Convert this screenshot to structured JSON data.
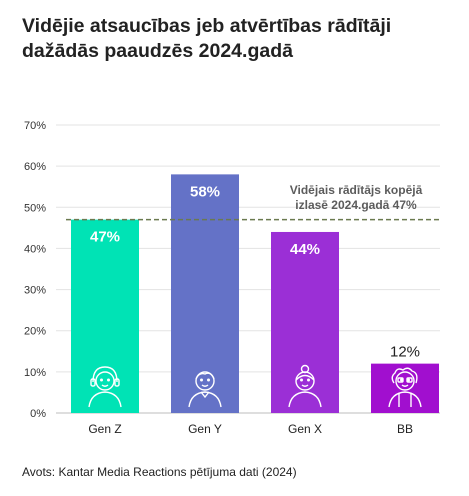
{
  "title_lines": [
    "Vidējie atsaucības jeb atvērtības rādītāji",
    "dažādās paaudzēs 2024.gadā"
  ],
  "source": "Avots: Kantar Media Reactions pētījuma dati (2024)",
  "chart_data": {
    "type": "bar",
    "categories": [
      "Gen Z",
      "Gen Y",
      "Gen X",
      "BB"
    ],
    "values": [
      47,
      58,
      44,
      12
    ],
    "value_labels": [
      "47%",
      "58%",
      "44%",
      "12%"
    ],
    "bar_colors": [
      "#00e3b5",
      "#6472c7",
      "#9b2fd6",
      "#a10fcf"
    ],
    "bar_icons": [
      "headset-person-icon",
      "person-icon",
      "woman-icon",
      "elder-person-icon"
    ],
    "ylim": [
      0,
      70
    ],
    "yticks": [
      0,
      10,
      20,
      30,
      40,
      50,
      60,
      70
    ],
    "ytick_labels": [
      "0%",
      "10%",
      "20%",
      "30%",
      "40%",
      "50%",
      "60%",
      "70%"
    ],
    "grid": true,
    "reference_line": {
      "value": 47,
      "label_lines": [
        "Vidējais rādītājs kopējā",
        "izlasē 2024.gadā 47%"
      ],
      "color": "#6b7a4f"
    }
  }
}
